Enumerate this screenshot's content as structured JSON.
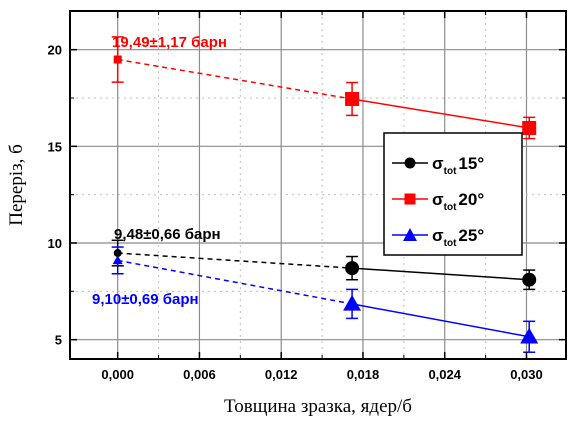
{
  "chart_data": {
    "type": "line",
    "xlabel": "Товщина зразка, ядер/б",
    "ylabel": "Переріз, б",
    "xlim": [
      -0.0035,
      0.0329
    ],
    "ylim": [
      4.0,
      22.0
    ],
    "xticks": [
      0.0,
      0.006,
      0.012,
      0.018,
      0.024,
      0.03
    ],
    "xtick_labels": [
      "0,000",
      "0,006",
      "0,012",
      "0,018",
      "0,024",
      "0,030"
    ],
    "yticks": [
      5,
      10,
      15,
      20
    ],
    "ytick_labels": [
      "5",
      "10",
      "15",
      "20"
    ],
    "grid": true,
    "legend_position": "center-right",
    "series": [
      {
        "legend_main": "σ",
        "legend_sub": "tot",
        "legend_tail": "15°",
        "color": "#000000",
        "marker": "circle",
        "x": [
          0.0,
          0.0172,
          0.0302
        ],
        "y": [
          9.48,
          8.7,
          8.1
        ],
        "err": [
          0.66,
          0.6,
          0.5
        ]
      },
      {
        "legend_main": "σ",
        "legend_sub": "tot",
        "legend_tail": "20°",
        "color": "#ff0000",
        "marker": "square",
        "x": [
          0.0,
          0.0172,
          0.0302
        ],
        "y": [
          19.49,
          17.45,
          15.95
        ],
        "err": [
          1.17,
          0.85,
          0.55
        ]
      },
      {
        "legend_main": "σ",
        "legend_sub": "tot",
        "legend_tail": "25°",
        "color": "#0000ff",
        "marker": "triangle",
        "x": [
          0.0,
          0.0172,
          0.0302
        ],
        "y": [
          9.1,
          6.85,
          5.15
        ],
        "err": [
          0.69,
          0.75,
          0.8
        ]
      }
    ],
    "annotations": [
      {
        "text": "19,49±1,17 барн",
        "color": "#ff0000"
      },
      {
        "text": "9,48±0,66  барн",
        "color": "#000000"
      },
      {
        "text": "9,10±0,69 барн",
        "color": "#0000ff"
      }
    ]
  }
}
